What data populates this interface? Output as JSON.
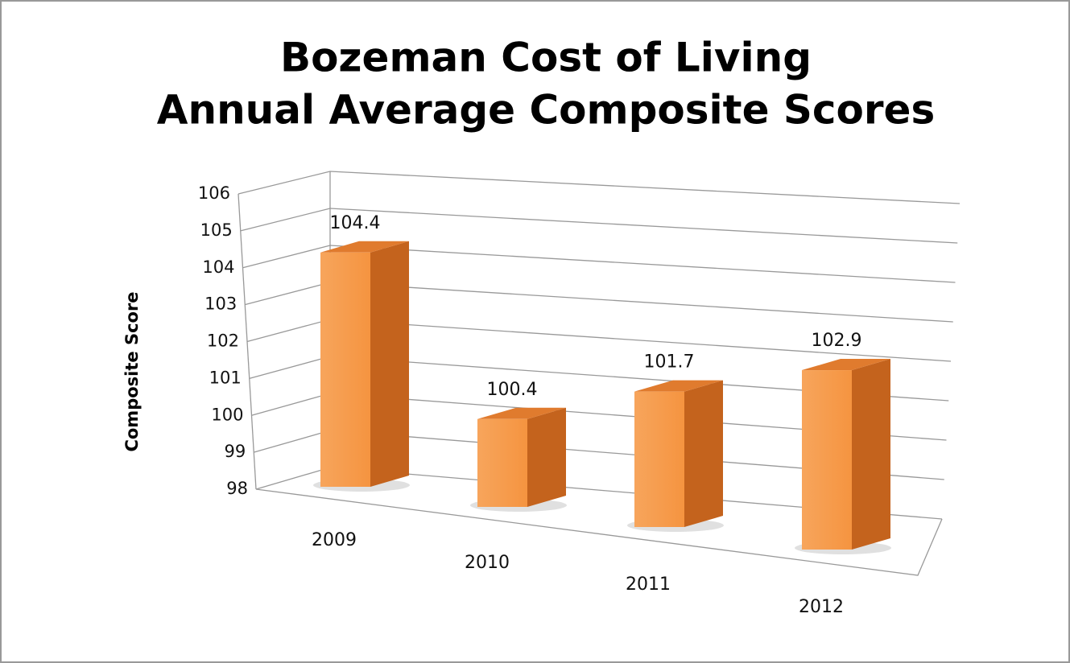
{
  "chart_data": {
    "type": "bar3d",
    "title": "Bozeman Cost of Living",
    "subtitle": "Annual Average Composite Scores",
    "y_label": "Composite Score",
    "categories": [
      "2009",
      "2010",
      "2011",
      "2012"
    ],
    "values": [
      104.4,
      100.4,
      101.7,
      102.9
    ],
    "color": "#f79646",
    "ylim": [
      98,
      106
    ],
    "yticks": [
      98,
      99,
      100,
      101,
      102,
      103,
      104,
      105,
      106
    ],
    "grid": true,
    "data_labels": true
  }
}
